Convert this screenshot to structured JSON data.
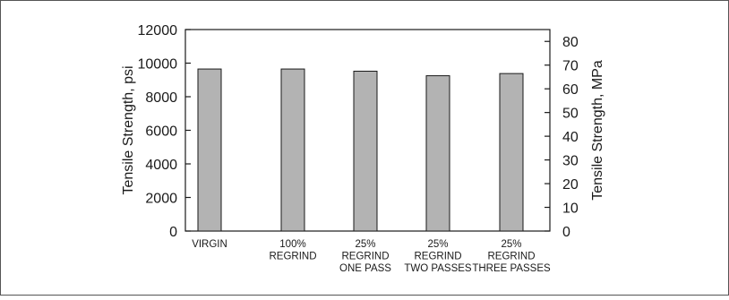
{
  "chart_data": {
    "type": "bar",
    "categories": [
      [
        "VIRGIN"
      ],
      [
        "100%",
        "REGRIND"
      ],
      [
        "25%",
        "REGRIND",
        "ONE PASS"
      ],
      [
        "25%",
        "REGRIND",
        "TWO PASSES"
      ],
      [
        "25%",
        "REGRIND",
        "THREE PASSES"
      ]
    ],
    "values": [
      9650,
      9650,
      9520,
      9250,
      9380
    ],
    "title": "",
    "ylabel": "Tensile Strength, psi",
    "ylabel_right": "Tensile Strength, MPa",
    "ylim": [
      0,
      12000
    ],
    "yticks": [
      "0",
      "2000",
      "4000",
      "6000",
      "8000",
      "10000",
      "12000"
    ],
    "ylim_right": [
      0,
      85
    ],
    "yticks_right": [
      "0",
      "10",
      "20",
      "30",
      "40",
      "50",
      "60",
      "70",
      "80"
    ],
    "grid": false,
    "bar_color": "#b3b3b3",
    "bar_edge_color": "#1a1a1a"
  }
}
